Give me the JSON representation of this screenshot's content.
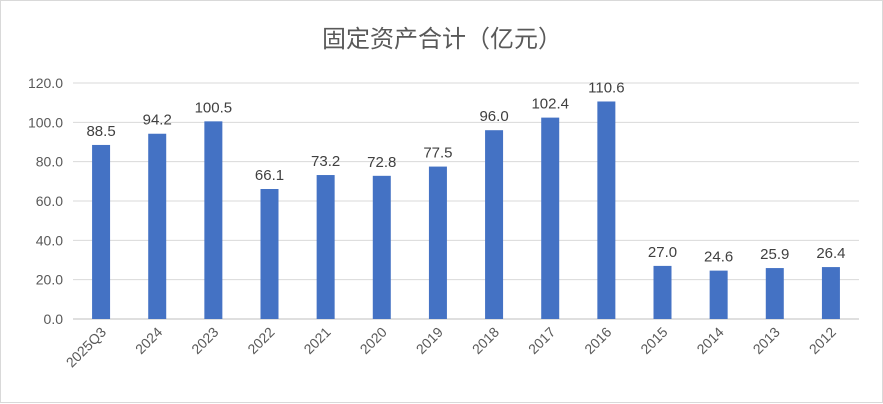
{
  "chart_data": {
    "type": "bar",
    "title": "固定资产合计（亿元）",
    "categories": [
      "2025Q3",
      "2024",
      "2023",
      "2022",
      "2021",
      "2020",
      "2019",
      "2018",
      "2017",
      "2016",
      "2015",
      "2014",
      "2013",
      "2012"
    ],
    "values": [
      88.5,
      94.2,
      100.5,
      66.1,
      73.2,
      72.8,
      77.5,
      96.0,
      102.4,
      110.6,
      27.0,
      24.6,
      25.9,
      26.4
    ],
    "data_labels": [
      "88.5",
      "94.2",
      "100.5",
      "66.1",
      "73.2",
      "72.8",
      "77.5",
      "96.0",
      "102.4",
      "110.6",
      "27.0",
      "24.6",
      "25.9",
      "26.4"
    ],
    "yticks": [
      "0.0",
      "20.0",
      "40.0",
      "60.0",
      "80.0",
      "100.0",
      "120.0"
    ],
    "ylim": [
      0,
      120
    ],
    "grid": true,
    "legend": "none",
    "bar_color": "#4472c4"
  }
}
